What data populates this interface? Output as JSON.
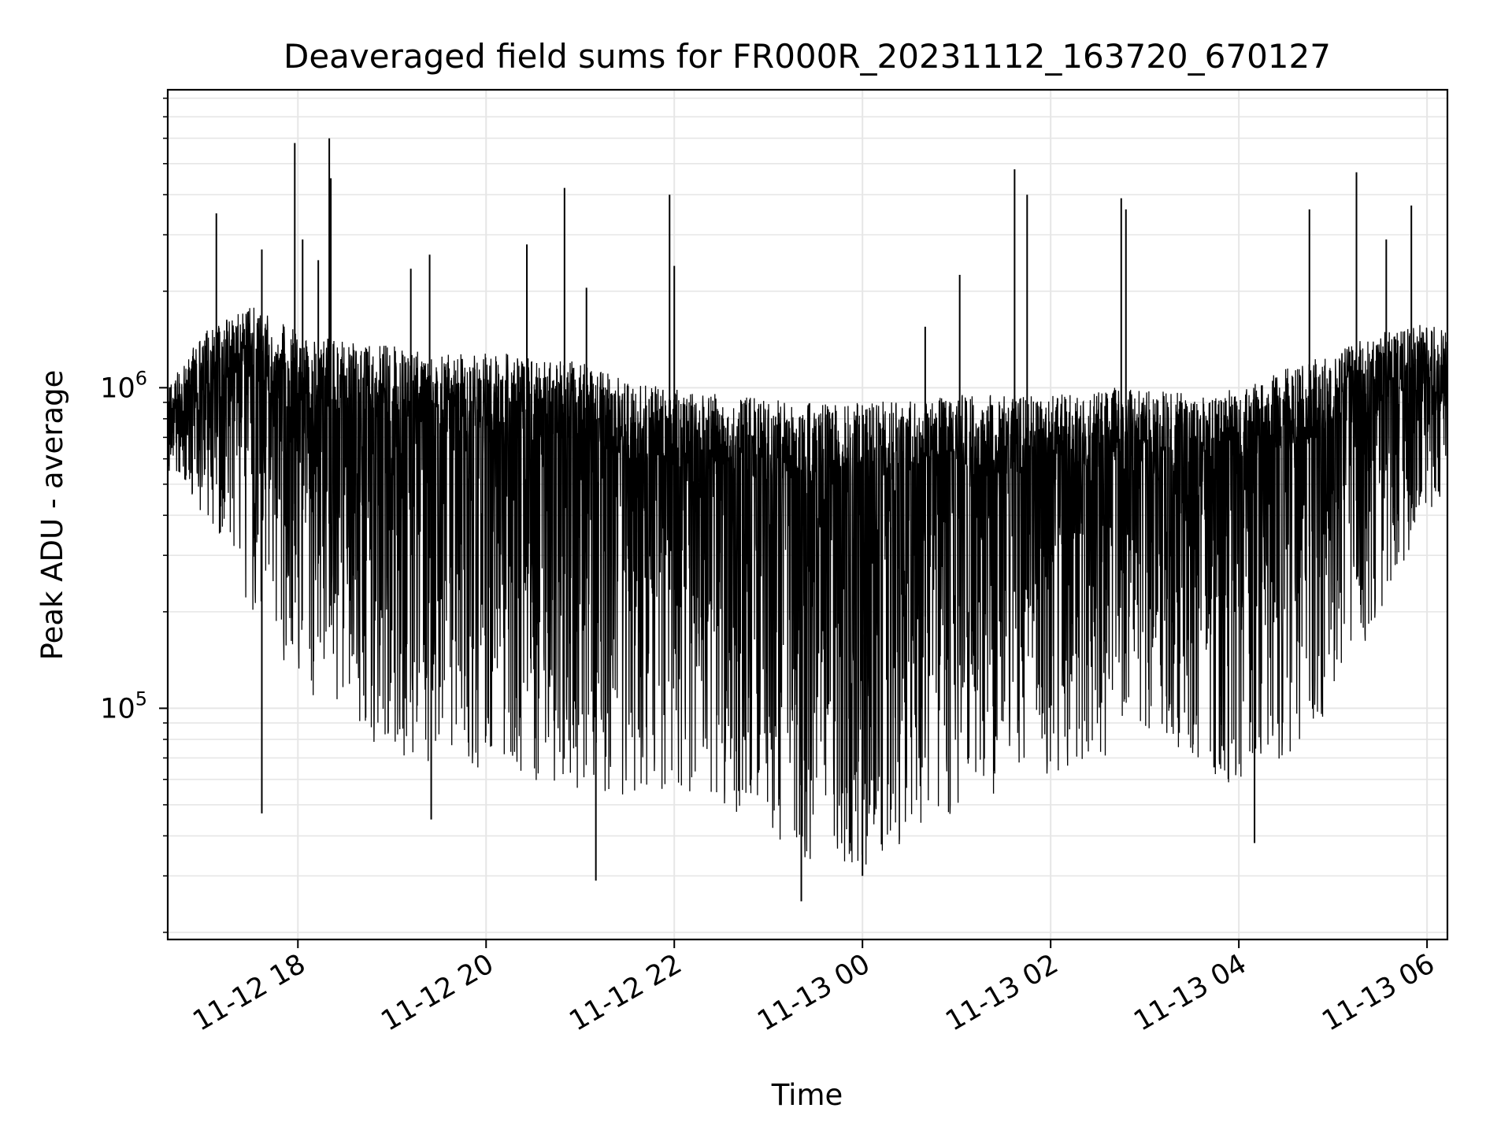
{
  "chart_data": {
    "type": "line",
    "title": "Deaveraged field sums for FR000R_20231112_163720_670127",
    "xlabel": "Time",
    "ylabel": "Peak ADU - average",
    "yscale": "log",
    "grid": true,
    "line_color": "#000000",
    "grid_color": "#e6e6e6",
    "xlim": [
      "2023-11-12T16:37",
      "2023-11-13T06:13"
    ],
    "ylim": [
      19000,
      8500000
    ],
    "x_ticks": [
      {
        "value": "2023-11-12T18:00",
        "label": "11-12 18"
      },
      {
        "value": "2023-11-12T20:00",
        "label": "11-12 20"
      },
      {
        "value": "2023-11-12T22:00",
        "label": "11-12 22"
      },
      {
        "value": "2023-11-13T00:00",
        "label": "11-13 00"
      },
      {
        "value": "2023-11-13T02:00",
        "label": "11-13 02"
      },
      {
        "value": "2023-11-13T04:00",
        "label": "11-13 04"
      },
      {
        "value": "2023-11-13T06:00",
        "label": "11-13 06"
      }
    ],
    "y_ticks": [
      {
        "value": 100000,
        "base": "10",
        "exp": "5"
      },
      {
        "value": 1000000,
        "base": "10",
        "exp": "6"
      }
    ],
    "series": [
      {
        "values_note_hidden": null,
        "envelope": [
          {
            "t": "2023-11-12T16:37",
            "high": 1000000,
            "low": 550000
          },
          {
            "t": "2023-11-12T17:00",
            "high": 1500000,
            "low": 400000
          },
          {
            "t": "2023-11-12T17:30",
            "high": 1800000,
            "low": 200000
          },
          {
            "t": "2023-11-12T18:00",
            "high": 1500000,
            "low": 120000
          },
          {
            "t": "2023-11-12T18:30",
            "high": 1400000,
            "low": 90000
          },
          {
            "t": "2023-11-12T19:00",
            "high": 1350000,
            "low": 70000
          },
          {
            "t": "2023-11-12T19:30",
            "high": 1300000,
            "low": 65000
          },
          {
            "t": "2023-11-12T20:00",
            "high": 1300000,
            "low": 65000
          },
          {
            "t": "2023-11-12T20:30",
            "high": 1250000,
            "low": 60000
          },
          {
            "t": "2023-11-12T21:00",
            "high": 1200000,
            "low": 55000
          },
          {
            "t": "2023-11-12T21:30",
            "high": 1050000,
            "low": 52000
          },
          {
            "t": "2023-11-12T22:00",
            "high": 1000000,
            "low": 55000
          },
          {
            "t": "2023-11-12T22:30",
            "high": 950000,
            "low": 50000
          },
          {
            "t": "2023-11-12T23:00",
            "high": 920000,
            "low": 38000
          },
          {
            "t": "2023-11-12T23:30",
            "high": 900000,
            "low": 32000
          },
          {
            "t": "2023-11-13T00:00",
            "high": 900000,
            "low": 32000
          },
          {
            "t": "2023-11-13T00:30",
            "high": 920000,
            "low": 38000
          },
          {
            "t": "2023-11-13T01:00",
            "high": 950000,
            "low": 45000
          },
          {
            "t": "2023-11-13T01:30",
            "high": 950000,
            "low": 55000
          },
          {
            "t": "2023-11-13T02:00",
            "high": 950000,
            "low": 60000
          },
          {
            "t": "2023-11-13T02:30",
            "high": 1000000,
            "low": 70000
          },
          {
            "t": "2023-11-13T03:00",
            "high": 1000000,
            "low": 75000
          },
          {
            "t": "2023-11-13T03:30",
            "high": 950000,
            "low": 70000
          },
          {
            "t": "2023-11-13T04:00",
            "high": 1000000,
            "low": 55000
          },
          {
            "t": "2023-11-13T04:30",
            "high": 1150000,
            "low": 70000
          },
          {
            "t": "2023-11-13T05:00",
            "high": 1300000,
            "low": 100000
          },
          {
            "t": "2023-11-13T05:30",
            "high": 1500000,
            "low": 200000
          },
          {
            "t": "2023-11-13T06:00",
            "high": 1600000,
            "low": 400000
          },
          {
            "t": "2023-11-13T06:13",
            "high": 1500000,
            "low": 450000
          }
        ],
        "spikes": [
          {
            "t": "2023-11-12T17:08",
            "value": 3500000
          },
          {
            "t": "2023-11-12T17:37",
            "value": 2700000
          },
          {
            "t": "2023-11-12T17:58",
            "value": 5800000
          },
          {
            "t": "2023-11-12T18:03",
            "value": 2900000
          },
          {
            "t": "2023-11-12T18:13",
            "value": 2500000
          },
          {
            "t": "2023-11-12T18:20",
            "value": 6000000
          },
          {
            "t": "2023-11-12T18:21",
            "value": 4500000
          },
          {
            "t": "2023-11-12T19:12",
            "value": 2350000
          },
          {
            "t": "2023-11-12T19:24",
            "value": 2600000
          },
          {
            "t": "2023-11-12T20:26",
            "value": 2800000
          },
          {
            "t": "2023-11-12T20:50",
            "value": 4200000
          },
          {
            "t": "2023-11-12T21:04",
            "value": 2050000
          },
          {
            "t": "2023-11-12T21:57",
            "value": 4000000
          },
          {
            "t": "2023-11-12T22:00",
            "value": 2400000
          },
          {
            "t": "2023-11-13T00:40",
            "value": 1550000
          },
          {
            "t": "2023-11-13T01:02",
            "value": 2250000
          },
          {
            "t": "2023-11-13T01:37",
            "value": 4800000
          },
          {
            "t": "2023-11-13T01:45",
            "value": 4000000
          },
          {
            "t": "2023-11-13T02:45",
            "value": 3900000
          },
          {
            "t": "2023-11-13T02:48",
            "value": 3600000
          },
          {
            "t": "2023-11-13T04:45",
            "value": 3600000
          },
          {
            "t": "2023-11-13T05:15",
            "value": 4700000
          },
          {
            "t": "2023-11-13T05:34",
            "value": 2900000
          },
          {
            "t": "2023-11-13T05:50",
            "value": 3700000
          },
          {
            "t": "2023-11-12T23:21",
            "value": 25000
          },
          {
            "t": "2023-11-12T21:10",
            "value": 29000
          },
          {
            "t": "2023-11-12T17:37",
            "value": 47000
          },
          {
            "t": "2023-11-12T19:25",
            "value": 45000
          },
          {
            "t": "2023-11-13T04:10",
            "value": 38000
          },
          {
            "t": "2023-11-13T00:00",
            "value": 30000
          }
        ]
      }
    ]
  }
}
